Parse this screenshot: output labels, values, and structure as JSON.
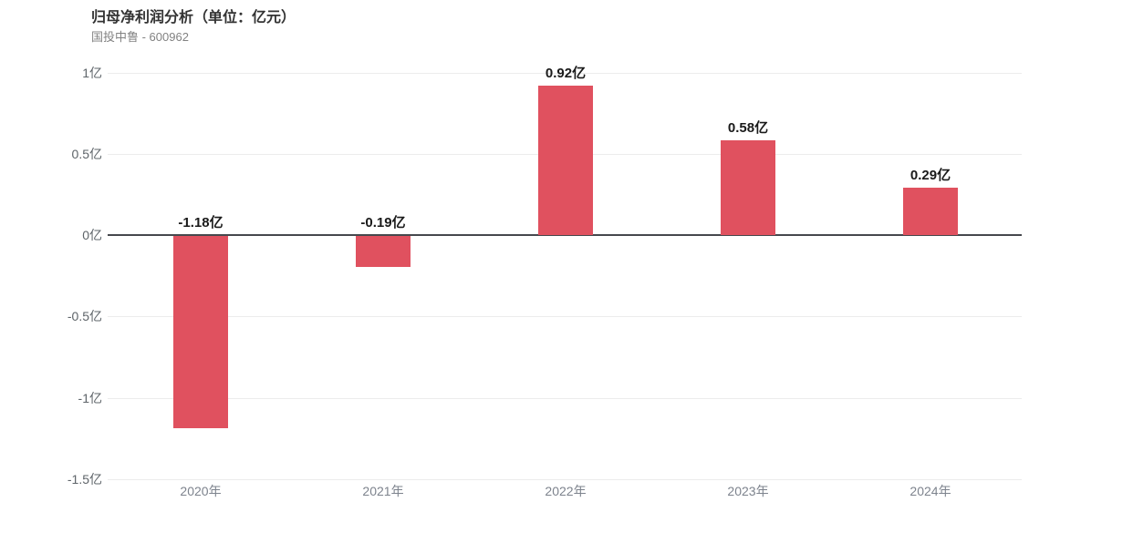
{
  "header": {
    "title": "归母净利润分析（单位：亿元）",
    "subtitle": "国投中鲁 - 600962"
  },
  "chart_data": {
    "type": "bar",
    "title": "归母净利润分析（单位：亿元）",
    "subtitle": "国投中鲁 - 600962",
    "categories": [
      "2020年",
      "2021年",
      "2022年",
      "2023年",
      "2024年"
    ],
    "values": [
      -1.18,
      -0.19,
      0.92,
      0.58,
      0.29
    ],
    "value_labels": [
      "-1.18亿",
      "-0.19亿",
      "0.92亿",
      "0.58亿",
      "0.29亿"
    ],
    "unit": "亿",
    "xlabel": "",
    "ylabel": "",
    "ylim": [
      -1.5,
      1
    ],
    "yticks": [
      1,
      0.5,
      0,
      -0.5,
      -1,
      -1.5
    ],
    "ytick_labels": [
      "1亿",
      "0.5亿",
      "0亿",
      "-0.5亿",
      "-1亿",
      "-1.5亿"
    ],
    "grid": true,
    "legend": false,
    "colors": {
      "bar": "#e0515f",
      "grid_line": "#ececec",
      "zero_line": "#46484d",
      "ytick_text": "#5e6469",
      "xtick_text": "#7d838d",
      "value_label_text": "#1a1a1a",
      "title_text": "#333333",
      "subtitle_text": "#828282",
      "background": "#ffffff"
    }
  }
}
